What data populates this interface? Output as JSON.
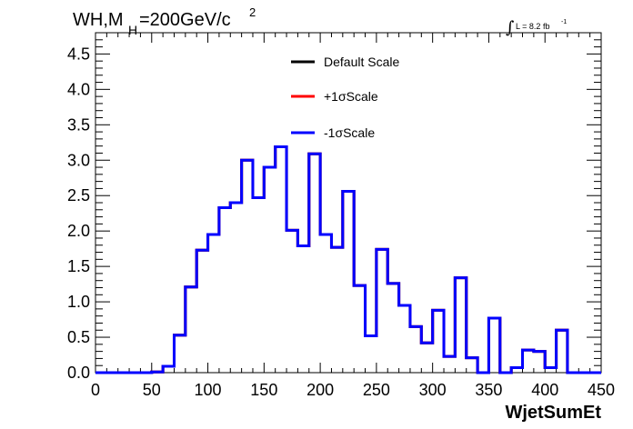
{
  "chart_data": {
    "type": "line",
    "title_main": "WH,M",
    "title_sub": "H",
    "title_rest": "=200GeV/c",
    "title_sup": "2",
    "lumi_label": "L = 8.2 fb",
    "lumi_sup": "-1",
    "xlabel": "WjetSumEt",
    "xlim": [
      0,
      450
    ],
    "ylim": [
      0,
      4.8
    ],
    "xticks": [
      "0",
      "50",
      "100",
      "150",
      "200",
      "250",
      "300",
      "350",
      "400",
      "450"
    ],
    "yticks": [
      "0.0",
      "0.5",
      "1.0",
      "1.5",
      "2.0",
      "2.5",
      "3.0",
      "3.5",
      "4.0",
      "4.5"
    ],
    "bin_width": 10,
    "series": [
      {
        "name": "Default Scale",
        "color": "#000000",
        "values": [
          0,
          0,
          0,
          0,
          0,
          0.01,
          0.09,
          0.53,
          1.21,
          1.73,
          1.95,
          2.33,
          2.4,
          3.0,
          2.47,
          2.9,
          3.19,
          2.01,
          1.79,
          3.09,
          1.95,
          1.77,
          2.56,
          1.23,
          0.52,
          1.74,
          1.26,
          0.95,
          0.65,
          0.42,
          0.88,
          0.23,
          1.34,
          0.21,
          0,
          0.77,
          0,
          0.07,
          0.32,
          0.3,
          0.07,
          0.6,
          0,
          0,
          0,
          0.01,
          0.03,
          0.01,
          0.01,
          0.03,
          0.03
        ]
      },
      {
        "name": "+1σScale",
        "color": "#ff0000",
        "values": [
          0,
          0,
          0,
          0,
          0,
          0.01,
          0.09,
          0.53,
          1.21,
          1.73,
          1.95,
          2.33,
          2.4,
          3.0,
          2.47,
          2.9,
          3.19,
          2.01,
          1.79,
          3.09,
          1.95,
          1.77,
          2.56,
          1.23,
          0.52,
          1.74,
          1.26,
          0.95,
          0.65,
          0.42,
          0.88,
          0.23,
          1.34,
          0.21,
          0,
          0.77,
          0,
          0.07,
          0.32,
          0.3,
          0.07,
          0.6,
          0,
          0,
          0,
          0.01,
          0.03,
          0.01,
          0.01,
          0.03,
          0.03
        ]
      },
      {
        "name": "-1σScale",
        "color": "#0000ff",
        "values": [
          0,
          0,
          0,
          0,
          0,
          0.01,
          0.09,
          0.53,
          1.21,
          1.73,
          1.95,
          2.33,
          2.4,
          3.0,
          2.47,
          2.9,
          3.19,
          2.01,
          1.79,
          3.09,
          1.95,
          1.77,
          2.56,
          1.23,
          0.52,
          1.74,
          1.26,
          0.95,
          0.65,
          0.42,
          0.88,
          0.23,
          1.34,
          0.21,
          0,
          0.77,
          0,
          0.07,
          0.32,
          0.3,
          0.07,
          0.6,
          0,
          0,
          0,
          0.01,
          0.03,
          0.01,
          0.01,
          0.03,
          0.03
        ]
      }
    ]
  }
}
